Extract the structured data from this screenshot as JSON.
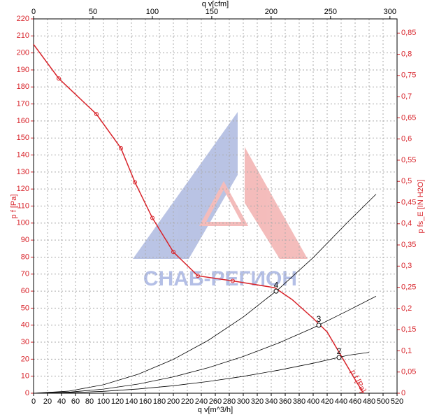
{
  "chart_data": {
    "type": "line",
    "x_label": "q v[m^3/h]",
    "x2_label": "q v[cfm]",
    "y_label": "p f [Pa]",
    "y2_label": "p fs_E [IN H2O]",
    "curve_label": "p f [Pa]",
    "watermark": "СНАБ-РЕГИОН",
    "xlim": [
      0,
      520
    ],
    "xticks": [
      0,
      20,
      40,
      60,
      80,
      100,
      120,
      140,
      160,
      180,
      200,
      220,
      240,
      260,
      280,
      300,
      320,
      340,
      360,
      380,
      400,
      420,
      440,
      460,
      480,
      500,
      520
    ],
    "ylim": [
      0,
      220
    ],
    "yticks": [
      0,
      10,
      20,
      30,
      40,
      50,
      60,
      70,
      80,
      90,
      100,
      110,
      120,
      130,
      140,
      150,
      160,
      170,
      180,
      190,
      200,
      210,
      220
    ],
    "x2lim": [
      0,
      306
    ],
    "x2ticks": [
      0,
      50,
      100,
      150,
      200,
      250,
      300
    ],
    "y2lim": [
      0,
      0.8835
    ],
    "y2ticks": [
      0,
      {
        "value": 0.05,
        "label": "0,05"
      },
      {
        "value": 0.1,
        "label": "0,1"
      },
      {
        "value": 0.15,
        "label": "0,15"
      },
      {
        "value": 0.2,
        "label": "0,2"
      },
      {
        "value": 0.25,
        "label": "0,25"
      },
      {
        "value": 0.3,
        "label": "0,3"
      },
      {
        "value": 0.35,
        "label": "0,35"
      },
      {
        "value": 0.4,
        "label": "0,4"
      },
      {
        "value": 0.45,
        "label": "0,45"
      },
      {
        "value": 0.5,
        "label": "0,5"
      },
      {
        "value": 0.55,
        "label": "0,55"
      },
      {
        "value": 0.6,
        "label": "0,6"
      },
      {
        "value": 0.65,
        "label": "0,65"
      },
      {
        "value": 0.7,
        "label": "0,7"
      },
      {
        "value": 0.75,
        "label": "0,75"
      },
      {
        "value": 0.8,
        "label": "0,8"
      },
      {
        "value": 0.85,
        "label": "0,85"
      }
    ],
    "grid": true,
    "series": [
      {
        "color": "#d8232a",
        "x": [
          0,
          36,
          90,
          125,
          145,
          170,
          200,
          235,
          285,
          345,
          370,
          400,
          420,
          440,
          460,
          472
        ],
        "values": [
          205,
          185,
          164,
          144,
          124,
          103,
          83,
          69,
          66,
          62,
          55,
          44,
          36,
          22,
          8,
          0
        ]
      },
      {
        "color": "#000000",
        "x": [
          0,
          50,
          100,
          150,
          200,
          250,
          300,
          350,
          400,
          450,
          490
        ],
        "values": [
          0,
          1.2,
          5,
          11.2,
          19.9,
          31.1,
          44.8,
          61,
          79.7,
          100.8,
          117
        ]
      },
      {
        "color": "#000000",
        "x": [
          0,
          50,
          100,
          150,
          200,
          250,
          300,
          350,
          400,
          450,
          490
        ],
        "values": [
          0,
          0.6,
          2.4,
          5.4,
          9.6,
          15,
          21.6,
          29.4,
          38.4,
          48.6,
          57
        ]
      },
      {
        "color": "#000000",
        "x": [
          0,
          50,
          100,
          150,
          200,
          250,
          300,
          350,
          400,
          450,
          480
        ],
        "values": [
          0,
          0.3,
          1.1,
          2.5,
          4.4,
          6.9,
          9.9,
          13.5,
          17.6,
          22.3,
          24
        ]
      }
    ],
    "markers": {
      "color": "#d8232a",
      "x": [
        36,
        90,
        125,
        145,
        170,
        200,
        235,
        285
      ],
      "values": [
        185,
        164,
        144,
        124,
        103,
        83,
        69,
        66
      ]
    },
    "operating_points": {
      "labels": [
        "4",
        "3",
        "2"
      ],
      "x": [
        347,
        408,
        437
      ],
      "values": [
        60,
        40,
        21
      ]
    }
  }
}
